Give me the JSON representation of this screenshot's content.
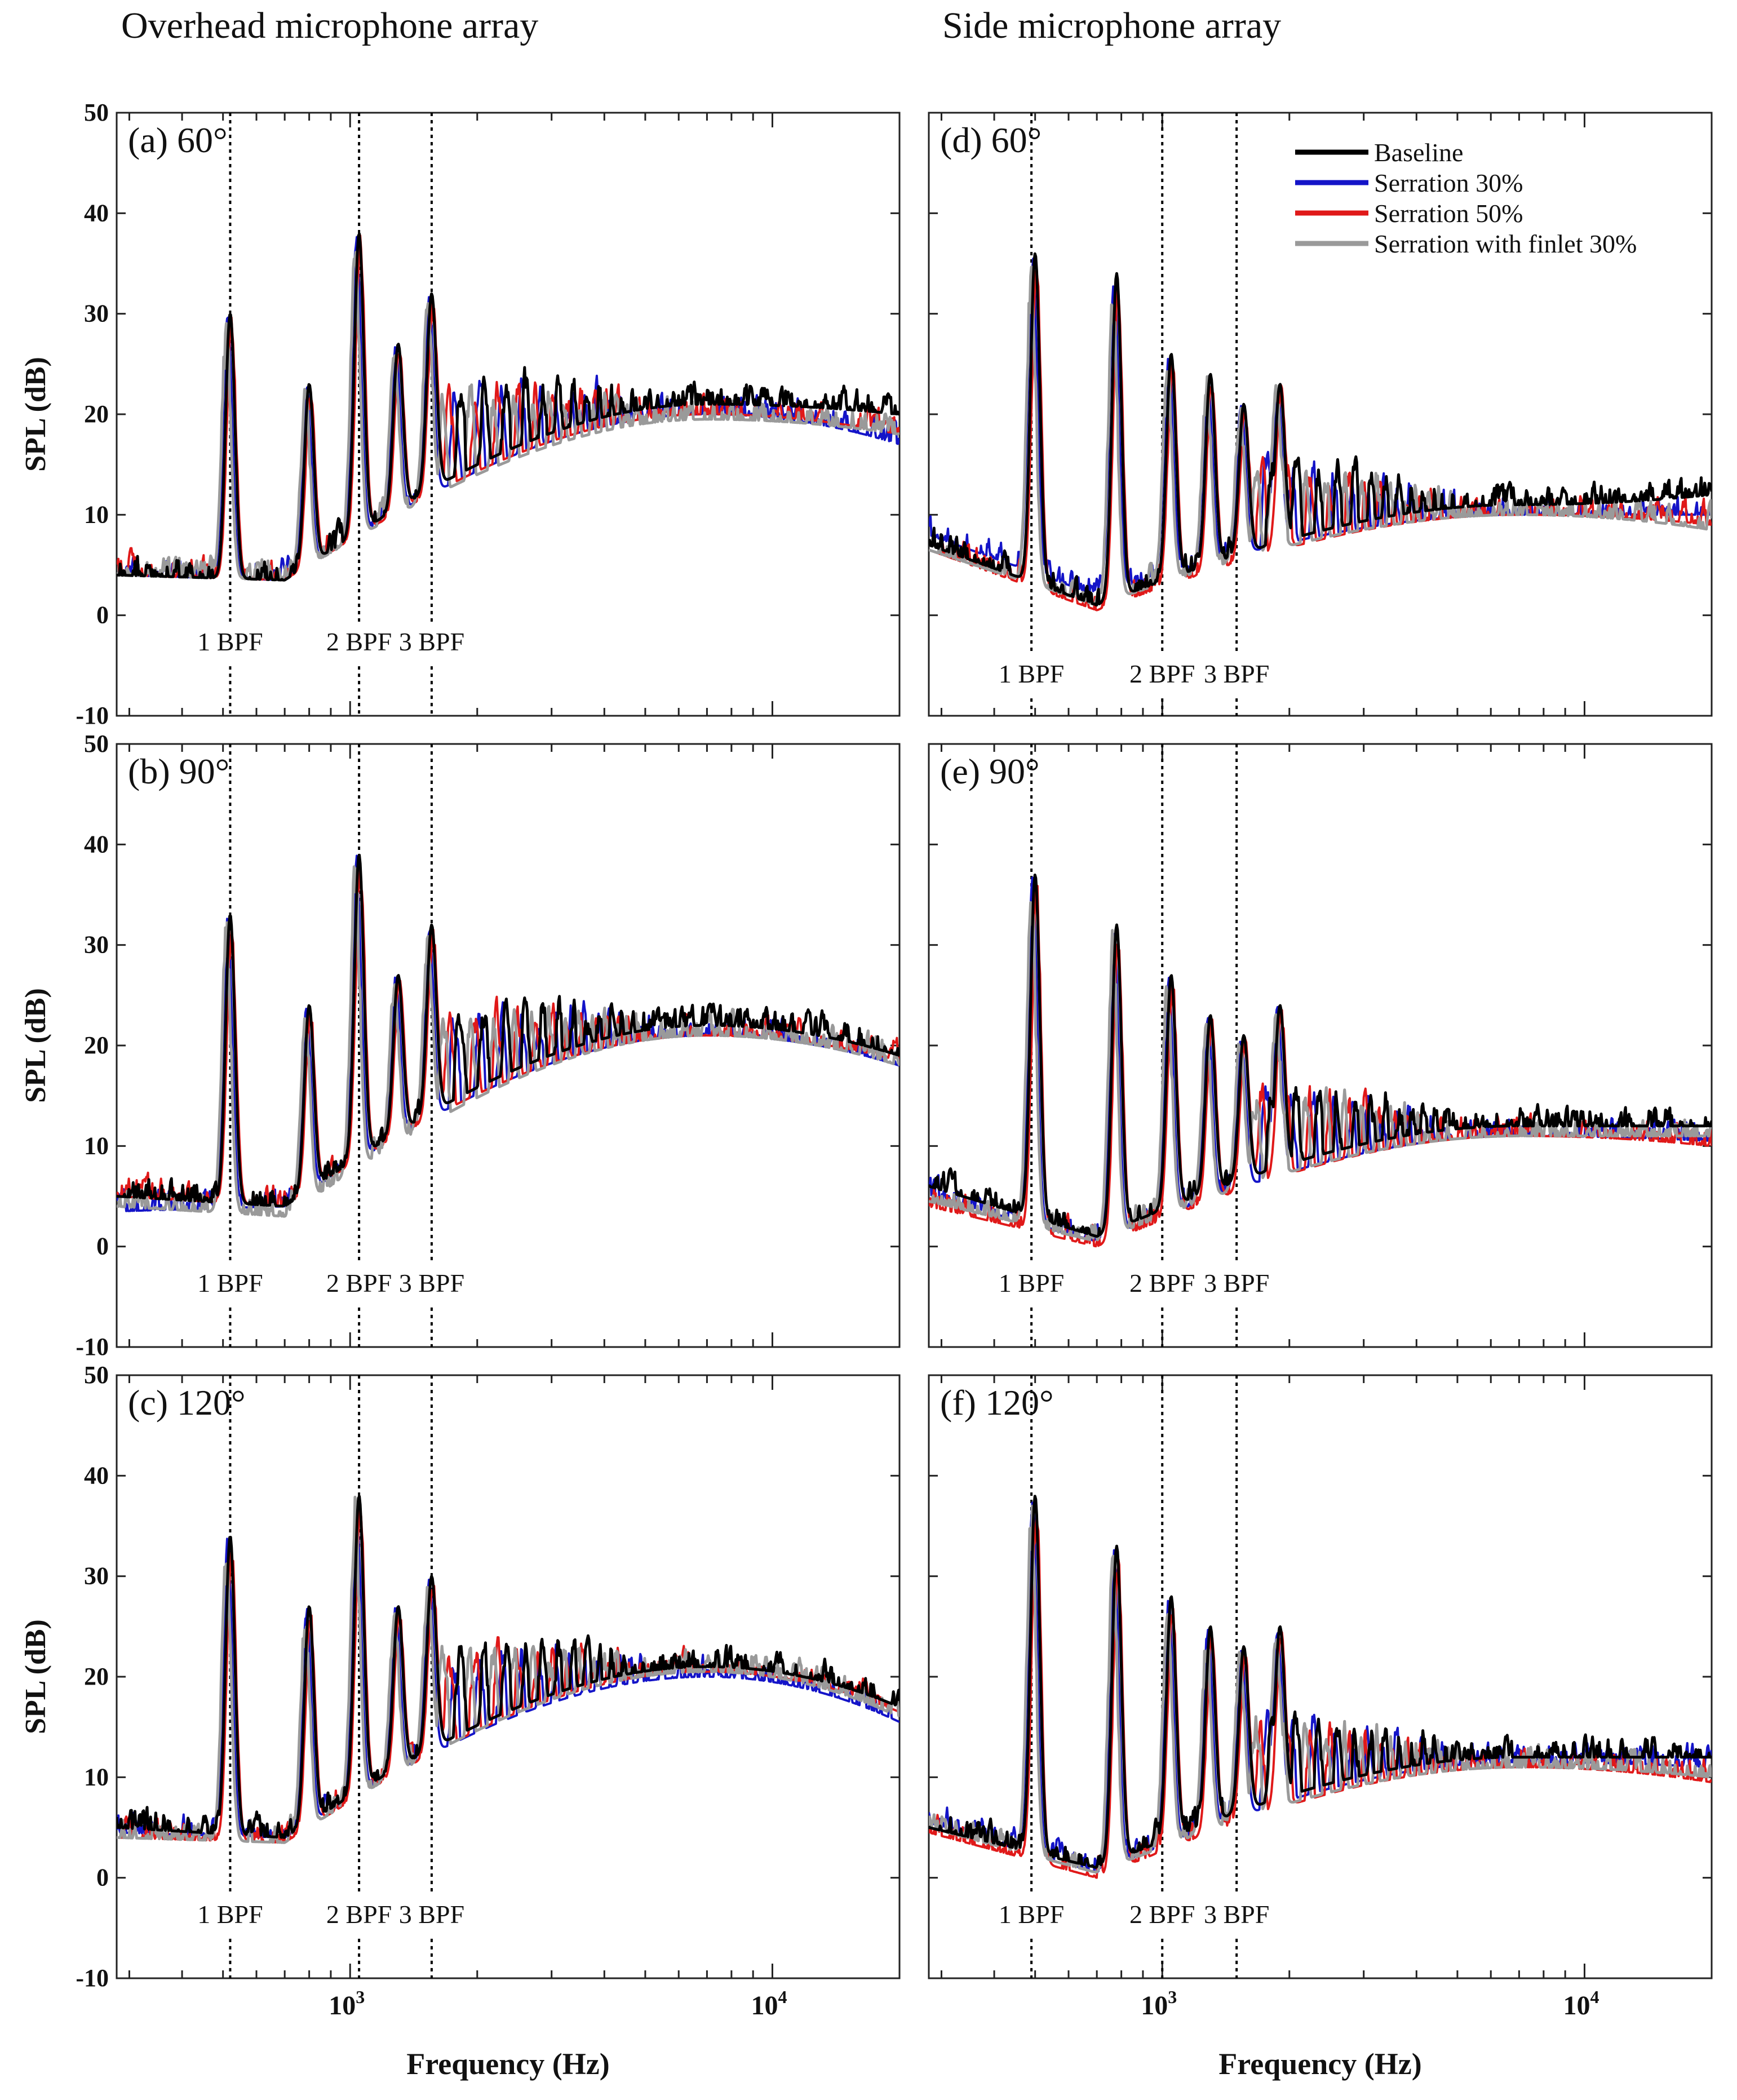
{
  "columns": {
    "left_title": "Overhead microphone array",
    "right_title": "Side microphone array"
  },
  "colors": {
    "baseline": "#000000",
    "serration30": "#1414c8",
    "serration50": "#e01919",
    "finlet30": "#9a9a9a"
  },
  "chart_data": [
    {
      "type": "line",
      "panel": "(a) 60°",
      "array": "Overhead microphone array",
      "xlabel": "",
      "ylabel": "SPL (dB)",
      "xscale": "log",
      "xlim": [
        280,
        20000
      ],
      "ylim": [
        -10,
        50
      ],
      "yticks": [
        "50",
        "40",
        "30",
        "20",
        "10",
        "0",
        "-10"
      ],
      "xticks": [],
      "bpf_markers": [
        {
          "label": "1 BPF",
          "freq": 520
        },
        {
          "label": "2 BPF",
          "freq": 1050
        },
        {
          "label": "3 BPF",
          "freq": 1560
        }
      ],
      "tonal_peaks": [
        [
          520,
          30
        ],
        [
          800,
          23
        ],
        [
          1050,
          38
        ],
        [
          1300,
          27
        ],
        [
          1560,
          32
        ]
      ],
      "series": [
        {
          "name": "Baseline",
          "low": 4,
          "trough": 3.5,
          "plateau": 21,
          "end": 20
        },
        {
          "name": "Serration 30%",
          "low": 4,
          "trough": 3.5,
          "plateau": 20,
          "end": 17
        },
        {
          "name": "Serration 50%",
          "low": 4,
          "trough": 3.5,
          "plateau": 20,
          "end": 18
        },
        {
          "name": "Serration with finlet 30%",
          "low": 4,
          "trough": 3.5,
          "plateau": 19.5,
          "end": 18
        }
      ]
    },
    {
      "type": "line",
      "panel": "(b) 90°",
      "array": "Overhead microphone array",
      "xlabel": "",
      "ylabel": "SPL (dB)",
      "xscale": "log",
      "xlim": [
        280,
        20000
      ],
      "ylim": [
        -10,
        50
      ],
      "yticks": [
        "50",
        "40",
        "30",
        "20",
        "10",
        "0",
        "-10"
      ],
      "xticks": [],
      "bpf_markers": [
        {
          "label": "1 BPF",
          "freq": 520
        },
        {
          "label": "2 BPF",
          "freq": 1050
        },
        {
          "label": "3 BPF",
          "freq": 1560
        }
      ],
      "tonal_peaks": [
        [
          520,
          33
        ],
        [
          800,
          24
        ],
        [
          1050,
          39
        ],
        [
          1300,
          27
        ],
        [
          1560,
          32
        ]
      ],
      "series": [
        {
          "name": "Baseline",
          "low": 5,
          "trough": 4,
          "plateau": 22,
          "end": 19
        },
        {
          "name": "Serration 30%",
          "low": 3.5,
          "trough": 4,
          "plateau": 21,
          "end": 18
        },
        {
          "name": "Serration 50%",
          "low": 5,
          "trough": 4,
          "plateau": 21,
          "end": 18.5
        },
        {
          "name": "Serration with finlet 30%",
          "low": 4,
          "trough": 3,
          "plateau": 21,
          "end": 18
        }
      ]
    },
    {
      "type": "line",
      "panel": "(c) 120°",
      "array": "Overhead microphone array",
      "xlabel": "Frequency (Hz)",
      "ylabel": "SPL (dB)",
      "xscale": "log",
      "xlim": [
        280,
        20000
      ],
      "ylim": [
        -10,
        50
      ],
      "yticks": [
        "50",
        "40",
        "30",
        "20",
        "10",
        "0",
        "-10"
      ],
      "xticks": [
        {
          "value": 1000,
          "base": "10",
          "exp": "3"
        },
        {
          "value": 10000,
          "base": "10",
          "exp": "4"
        }
      ],
      "bpf_markers": [
        {
          "label": "1 BPF",
          "freq": 520
        },
        {
          "label": "2 BPF",
          "freq": 1050
        },
        {
          "label": "3 BPF",
          "freq": 1560
        }
      ],
      "tonal_peaks": [
        [
          520,
          34
        ],
        [
          800,
          27
        ],
        [
          1050,
          38
        ],
        [
          1300,
          27
        ],
        [
          1560,
          30
        ]
      ],
      "series": [
        {
          "name": "Baseline",
          "low": 5,
          "trough": 4,
          "plateau": 21,
          "end": 17
        },
        {
          "name": "Serration 30%",
          "low": 4.5,
          "trough": 4,
          "plateau": 20,
          "end": 15.5
        },
        {
          "name": "Serration 50%",
          "low": 4,
          "trough": 3.5,
          "plateau": 20.5,
          "end": 16.5
        },
        {
          "name": "Serration with finlet 30%",
          "low": 4,
          "trough": 3.5,
          "plateau": 20.5,
          "end": 16
        }
      ]
    },
    {
      "type": "line",
      "panel": "(d) 60°",
      "array": "Side microphone array",
      "xlabel": "",
      "ylabel": "",
      "xscale": "log",
      "xlim": [
        280,
        20000
      ],
      "ylim": [
        -10,
        50
      ],
      "yticks": [],
      "xticks": [],
      "bpf_markers": [
        {
          "label": "1 BPF",
          "freq": 490
        },
        {
          "label": "2 BPF",
          "freq": 1000
        },
        {
          "label": "3 BPF",
          "freq": 1500
        }
      ],
      "tonal_peaks": [
        [
          500,
          36
        ],
        [
          780,
          34
        ],
        [
          1050,
          26
        ],
        [
          1300,
          24
        ],
        [
          1560,
          21
        ],
        [
          1900,
          23
        ]
      ],
      "series": [
        {
          "name": "Baseline",
          "low": 7,
          "trough": 1,
          "plateau": 11,
          "end": 12
        },
        {
          "name": "Serration 30%",
          "low": 8,
          "trough": 2,
          "plateau": 10,
          "end": 10
        },
        {
          "name": "Serration 50%",
          "low": 6.5,
          "trough": 0.5,
          "plateau": 10,
          "end": 9
        },
        {
          "name": "Serration with finlet 30%",
          "low": 6.5,
          "trough": 1,
          "plateau": 10,
          "end": 8.5
        }
      ],
      "legend": {
        "position": "top-right",
        "entries": [
          "Baseline",
          "Serration 30%",
          "Serration 50%",
          "Serration with finlet 30%"
        ]
      }
    },
    {
      "type": "line",
      "panel": "(e) 90°",
      "array": "Side microphone array",
      "xlabel": "",
      "ylabel": "",
      "xscale": "log",
      "xlim": [
        280,
        20000
      ],
      "ylim": [
        -10,
        50
      ],
      "yticks": [],
      "xticks": [],
      "bpf_markers": [
        {
          "label": "1 BPF",
          "freq": 490
        },
        {
          "label": "2 BPF",
          "freq": 1000
        },
        {
          "label": "3 BPF",
          "freq": 1500
        }
      ],
      "tonal_peaks": [
        [
          500,
          37
        ],
        [
          780,
          32
        ],
        [
          1050,
          27
        ],
        [
          1300,
          23
        ],
        [
          1560,
          21
        ],
        [
          1900,
          24
        ]
      ],
      "series": [
        {
          "name": "Baseline",
          "low": 6,
          "trough": 1,
          "plateau": 12,
          "end": 12
        },
        {
          "name": "Serration 30%",
          "low": 5,
          "trough": 0.5,
          "plateau": 11,
          "end": 10.5
        },
        {
          "name": "Serration 50%",
          "low": 4,
          "trough": 0,
          "plateau": 11,
          "end": 10
        },
        {
          "name": "Serration with finlet 30%",
          "low": 4.5,
          "trough": 0.5,
          "plateau": 11,
          "end": 11
        }
      ]
    },
    {
      "type": "line",
      "panel": "(f) 120°",
      "array": "Side microphone array",
      "xlabel": "Frequency (Hz)",
      "ylabel": "",
      "xscale": "log",
      "xlim": [
        280,
        20000
      ],
      "ylim": [
        -10,
        50
      ],
      "yticks": [],
      "xticks": [
        {
          "value": 1000,
          "base": "10",
          "exp": "3"
        },
        {
          "value": 10000,
          "base": "10",
          "exp": "4"
        }
      ],
      "bpf_markers": [
        {
          "label": "1 BPF",
          "freq": 490
        },
        {
          "label": "2 BPF",
          "freq": 1000
        },
        {
          "label": "3 BPF",
          "freq": 1500
        }
      ],
      "tonal_peaks": [
        [
          500,
          38
        ],
        [
          780,
          33
        ],
        [
          1050,
          28
        ],
        [
          1300,
          25
        ],
        [
          1560,
          23
        ],
        [
          1900,
          25
        ]
      ],
      "series": [
        {
          "name": "Baseline",
          "low": 5,
          "trough": 1,
          "plateau": 12,
          "end": 12
        },
        {
          "name": "Serration 30%",
          "low": 5.5,
          "trough": 0.5,
          "plateau": 11.5,
          "end": 11
        },
        {
          "name": "Serration 50%",
          "low": 4.5,
          "trough": 0,
          "plateau": 11,
          "end": 9.5
        },
        {
          "name": "Serration with finlet 30%",
          "low": 5,
          "trough": 0.5,
          "plateau": 11,
          "end": 10
        }
      ]
    }
  ]
}
